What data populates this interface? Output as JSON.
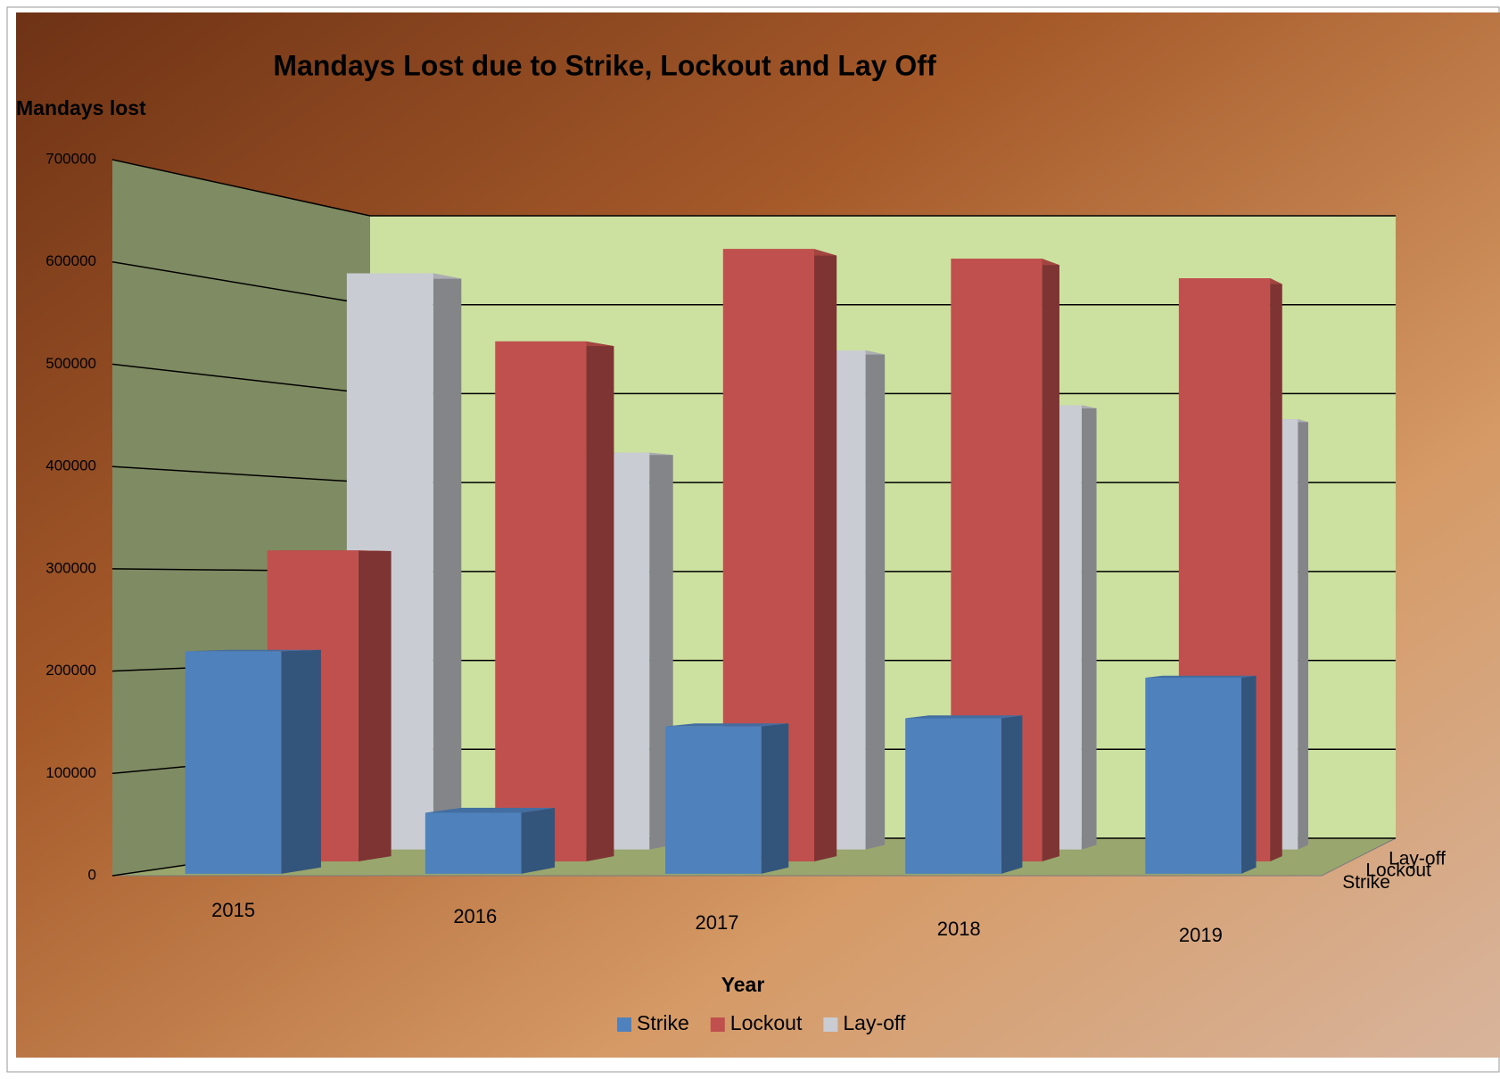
{
  "chart_data": {
    "type": "bar3d",
    "title": "Mandays Lost due to Strike, Lockout and Lay Off",
    "y_label": "Mandays lost",
    "x_label": "Year",
    "categories": [
      "2015",
      "2016",
      "2017",
      "2018",
      "2019"
    ],
    "series": [
      {
        "name": "Strike",
        "color": "#4f81bd",
        "values": [
          219000,
          60000,
          145000,
          153000,
          193000
        ]
      },
      {
        "name": "Lockout",
        "color": "#c0504d",
        "values": [
          320000,
          535000,
          630000,
          620000,
          600000
        ]
      },
      {
        "name": "Lay-off",
        "color": "#c9ccd3",
        "values": [
          620000,
          427000,
          537000,
          478000,
          463000
        ]
      }
    ],
    "ylim": [
      0,
      700000
    ],
    "yticks": [
      0,
      100000,
      200000,
      300000,
      400000,
      500000,
      600000,
      700000
    ],
    "grid": true,
    "legend": "bottom"
  }
}
